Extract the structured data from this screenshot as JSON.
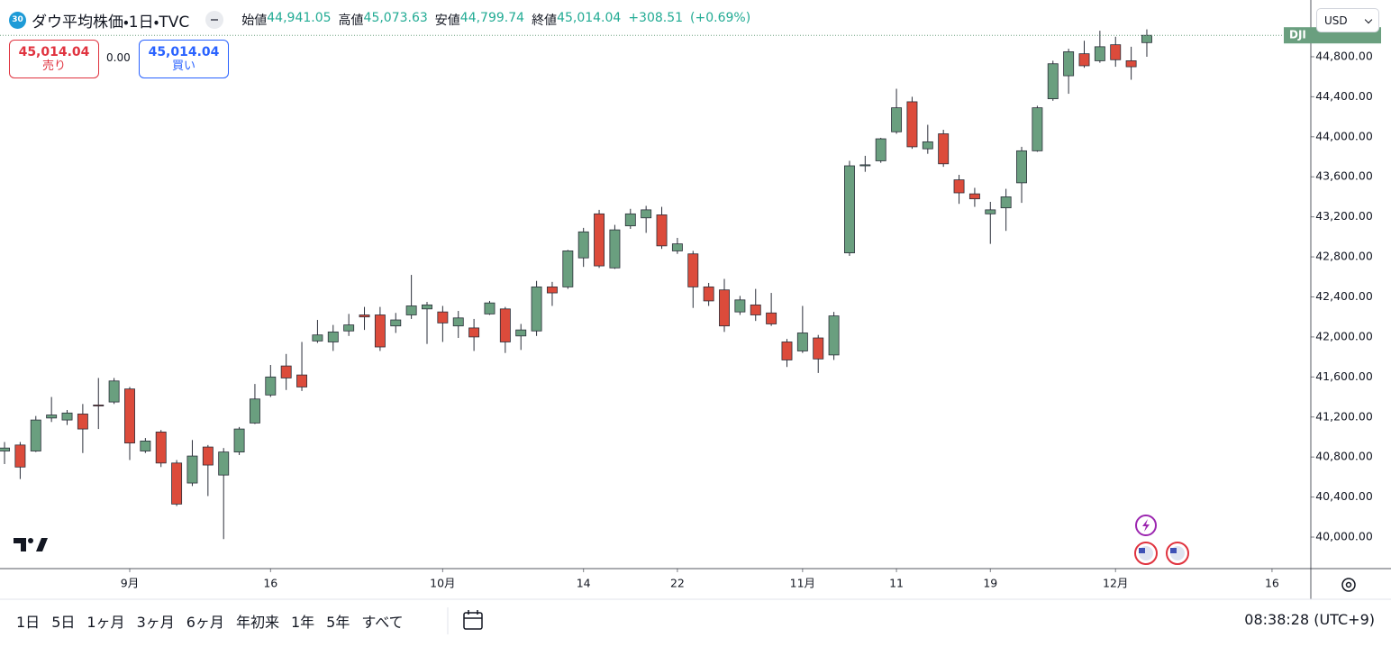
{
  "header": {
    "badge": "30",
    "title": "ダウ平均株価・1日・TVC",
    "open_label": "始値",
    "open": "44,941.05",
    "high_label": "高値",
    "high": "45,073.63",
    "low_label": "安値",
    "low": "44,799.74",
    "close_label": "終値",
    "close": "45,014.04",
    "change": "+308.51",
    "change_pct": "(+0.69%)"
  },
  "trade": {
    "sell_price": "45,014.04",
    "sell_label": "売り",
    "spread": "0.00",
    "buy_price": "45,014.04",
    "buy_label": "買い"
  },
  "currency": "USD",
  "chart_data": {
    "type": "candlestick",
    "symbol_tag": "DJI",
    "up_color": "#6a9f7f",
    "down_color": "#dc4b3b",
    "wick_color": "#2a2e39",
    "grid": false,
    "open": [
      40860,
      40920,
      40860,
      41190,
      41170,
      41230,
      41320,
      41350,
      41480,
      40860,
      41050,
      40740,
      40540,
      40900,
      40620,
      40850,
      41140,
      41420,
      41710,
      41620,
      41960,
      41950,
      42060,
      42220,
      42220,
      42110,
      42220,
      42280,
      42250,
      42110,
      42090,
      42230,
      42280,
      42010,
      42060,
      42500,
      42500,
      42790,
      43230,
      42690,
      43110,
      43190,
      43220,
      42860,
      42830,
      42500,
      42470,
      42250,
      42320,
      42240,
      41950,
      41860,
      41990,
      41820,
      42840,
      43710,
      43760,
      44050,
      44350,
      43880,
      44030,
      43570,
      43430,
      43230,
      43290,
      43540,
      43860,
      44380,
      44610,
      44830,
      44760,
      44920,
      44760,
      44941.05
    ],
    "high": [
      40950,
      40950,
      41210,
      41400,
      41270,
      41330,
      41590,
      41590,
      41500,
      40990,
      41070,
      40770,
      40970,
      40920,
      40890,
      41100,
      41530,
      41720,
      41830,
      41950,
      42170,
      42120,
      42230,
      42300,
      42300,
      42240,
      42620,
      42350,
      42310,
      42260,
      42180,
      42360,
      42300,
      42130,
      42560,
      42550,
      42870,
      43090,
      43270,
      43120,
      43280,
      43310,
      43300,
      42990,
      42860,
      42540,
      42580,
      42410,
      42480,
      42440,
      41980,
      42310,
      42020,
      42250,
      43760,
      43810,
      43990,
      44480,
      44400,
      44120,
      44070,
      43620,
      43490,
      43350,
      43480,
      43900,
      44310,
      44760,
      44880,
      44960,
      45060,
      45000,
      44900,
      45073.63
    ],
    "low": [
      40730,
      40580,
      40850,
      41150,
      41120,
      40840,
      41080,
      41330,
      40770,
      40840,
      40700,
      40310,
      40510,
      40410,
      39980,
      40820,
      41130,
      41400,
      41470,
      41460,
      41940,
      41860,
      42010,
      42070,
      41860,
      42040,
      42180,
      41930,
      41950,
      41990,
      41860,
      42220,
      41840,
      41870,
      42010,
      42310,
      42480,
      42700,
      42690,
      42680,
      43080,
      43040,
      42880,
      42830,
      42290,
      42310,
      42050,
      42220,
      42160,
      42110,
      41700,
      41840,
      41640,
      41770,
      42810,
      43650,
      43740,
      44030,
      43880,
      43830,
      43700,
      43330,
      43300,
      42930,
      43060,
      43340,
      43850,
      44360,
      44430,
      44690,
      44740,
      44700,
      44570,
      44799.74
    ],
    "close": [
      40890,
      40700,
      41170,
      41220,
      41240,
      41080,
      41310,
      41560,
      40940,
      40960,
      40740,
      40330,
      40810,
      40720,
      40850,
      41080,
      41380,
      41600,
      41590,
      41500,
      42020,
      42050,
      42120,
      42200,
      41900,
      42170,
      42310,
      42320,
      42140,
      42190,
      42000,
      42340,
      41950,
      42070,
      42500,
      42440,
      42860,
      43050,
      42710,
      43070,
      43230,
      43270,
      42910,
      42930,
      42500,
      42360,
      42110,
      42370,
      42220,
      42130,
      41770,
      42040,
      41780,
      42210,
      43710,
      43720,
      43980,
      44290,
      43900,
      43950,
      43730,
      43440,
      43380,
      43270,
      43400,
      43860,
      44290,
      44730,
      44850,
      44710,
      44900,
      44770,
      44700,
      45014.04
    ],
    "ylim": [
      39685,
      45322
    ],
    "yticks": [
      {
        "value": 40000,
        "label": "40,000.00"
      },
      {
        "value": 40400,
        "label": "40,400.00"
      },
      {
        "value": 40800,
        "label": "40,800.00"
      },
      {
        "value": 41200,
        "label": "41,200.00"
      },
      {
        "value": 41600,
        "label": "41,600.00"
      },
      {
        "value": 42000,
        "label": "42,000.00"
      },
      {
        "value": 42400,
        "label": "42,400.00"
      },
      {
        "value": 42800,
        "label": "42,800.00"
      },
      {
        "value": 43200,
        "label": "43,200.00"
      },
      {
        "value": 43600,
        "label": "43,600.00"
      },
      {
        "value": 44000,
        "label": "44,000.00"
      },
      {
        "value": 44400,
        "label": "44,400.00"
      },
      {
        "value": 44800,
        "label": "44,800.00"
      }
    ],
    "xlim": [
      -0.29,
      83.48
    ],
    "xticks": [
      {
        "value": 8,
        "label": "9月"
      },
      {
        "value": 17,
        "label": "16"
      },
      {
        "value": 28,
        "label": "10月"
      },
      {
        "value": 37,
        "label": "14"
      },
      {
        "value": 43,
        "label": "22"
      },
      {
        "value": 51,
        "label": "11月"
      },
      {
        "value": 57,
        "label": "11"
      },
      {
        "value": 63,
        "label": "19"
      },
      {
        "value": 71,
        "label": "12月"
      },
      {
        "value": 81,
        "label": "16"
      }
    ]
  },
  "toolbar": {
    "ranges": [
      "1日",
      "5日",
      "1ヶ月",
      "3ヶ月",
      "6ヶ月",
      "年初来",
      "1年",
      "5年",
      "すべて"
    ],
    "clock": "08:38:28 (UTC+9)"
  }
}
